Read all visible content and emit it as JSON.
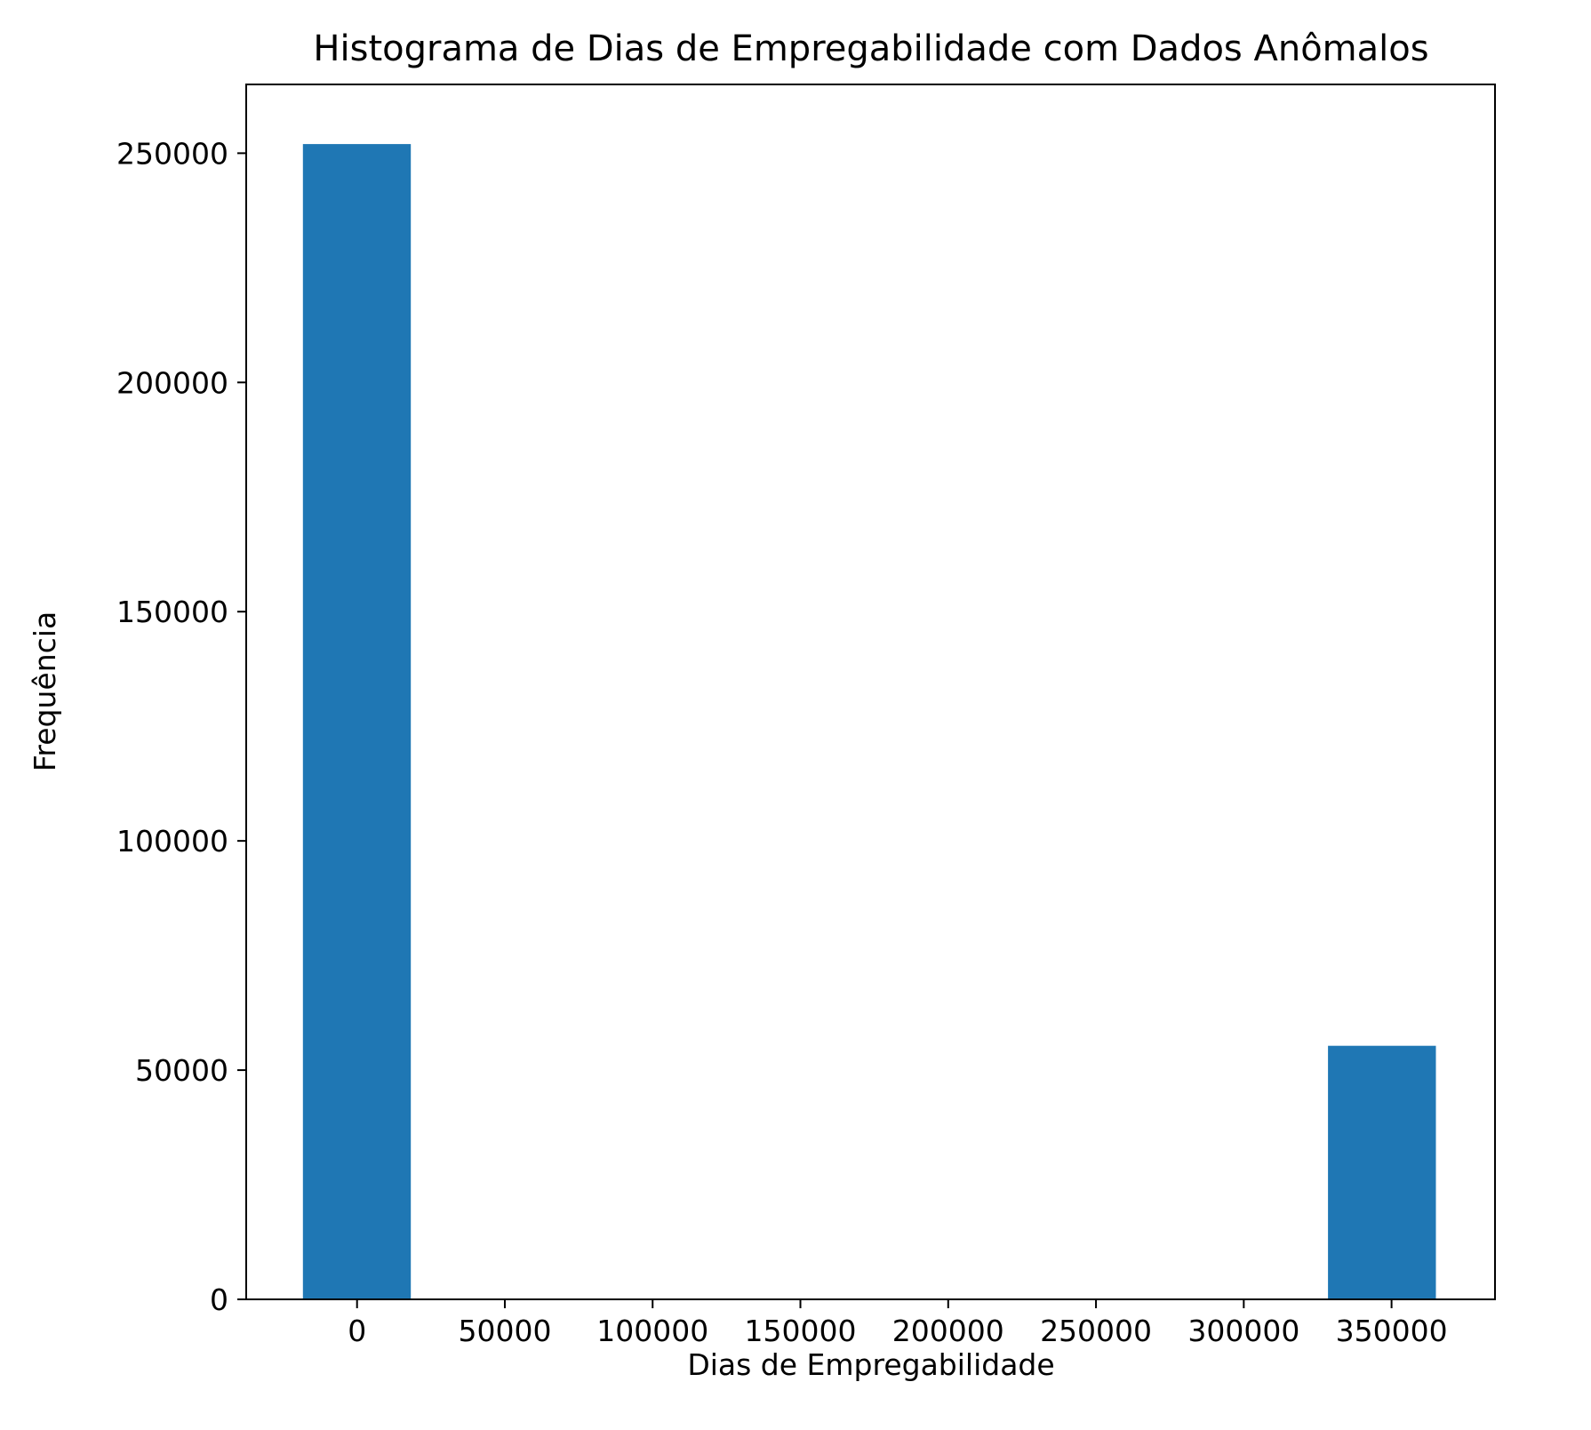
{
  "chart_data": {
    "type": "bar",
    "title": "Histograma de Dias de Empregabilidade com Dados Anômalos",
    "xlabel": "Dias de Empregabilidade",
    "ylabel": "Frequência",
    "xlim": [
      -37500,
      385000
    ],
    "ylim": [
      0,
      265000
    ],
    "xticks": [
      0,
      50000,
      100000,
      150000,
      200000,
      250000,
      300000,
      350000
    ],
    "yticks": [
      0,
      50000,
      100000,
      150000,
      200000,
      250000
    ],
    "bars": [
      {
        "x0": -18300,
        "x1": 18200,
        "value": 252000
      },
      {
        "x0": 18200,
        "x1": 54700,
        "value": 0
      },
      {
        "x0": 54700,
        "x1": 91200,
        "value": 0
      },
      {
        "x0": 91200,
        "x1": 127700,
        "value": 0
      },
      {
        "x0": 127700,
        "x1": 164200,
        "value": 0
      },
      {
        "x0": 164200,
        "x1": 200700,
        "value": 0
      },
      {
        "x0": 200700,
        "x1": 237200,
        "value": 0
      },
      {
        "x0": 237200,
        "x1": 273700,
        "value": 0
      },
      {
        "x0": 273700,
        "x1": 310200,
        "value": 0
      },
      {
        "x0": 310200,
        "x1": 346700,
        "value": 0
      },
      {
        "x0": 328500,
        "x1": 365000,
        "value": 55300
      }
    ],
    "bar_color": "#1f77b4",
    "grid": false,
    "legend": false
  }
}
